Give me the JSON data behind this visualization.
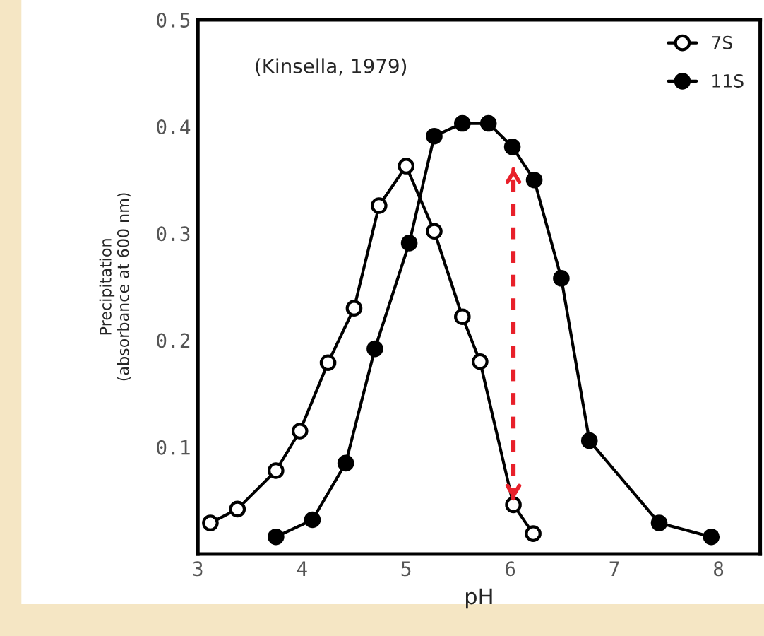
{
  "chart_data": {
    "type": "line",
    "xlabel": "pH",
    "ylabel": "Precipitation\n(absorbance at 600 nm)",
    "annotations": [
      "(Kinsella, 1979)"
    ],
    "xlim": [
      3,
      8.4
    ],
    "xticks": [
      3,
      4,
      5,
      6,
      7,
      8
    ],
    "ylim": [
      0,
      0.5
    ],
    "yticks": [
      0.1,
      0.2,
      0.3,
      0.4,
      0.5
    ],
    "marker": "circle",
    "line_style": "solid",
    "legend": "top right",
    "grid": false,
    "series": [
      {
        "name": "7S",
        "color": "#000000",
        "x": [
          3.12,
          3.38,
          3.75,
          3.98,
          4.25,
          4.5,
          4.74,
          5.0,
          5.27,
          5.54,
          5.71,
          6.03,
          6.22
        ],
        "values": [
          0.029,
          0.042,
          0.078,
          0.115,
          0.179,
          0.23,
          0.326,
          0.363,
          0.302,
          0.222,
          0.18,
          0.046,
          0.019
        ]
      },
      {
        "name": "11S",
        "color": "#000000",
        "x": [
          3.75,
          4.1,
          4.42,
          4.7,
          5.03,
          5.27,
          5.54,
          5.79,
          6.02,
          6.23,
          6.49,
          6.76,
          7.43,
          7.93
        ],
        "values": [
          0.016,
          0.032,
          0.085,
          0.192,
          0.291,
          0.391,
          0.403,
          0.403,
          0.381,
          0.35,
          0.258,
          0.106,
          0.029,
          0.016
        ]
      }
    ]
  }
}
